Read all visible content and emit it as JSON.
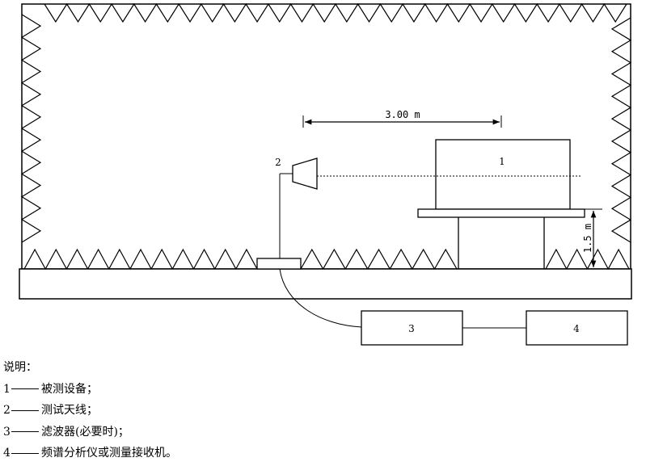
{
  "diagram": {
    "distance_label": "3.00 m",
    "height_label": "1.5 m",
    "box_labels": {
      "eut": "1",
      "antenna": "2",
      "filter": "3",
      "receiver": "4"
    }
  },
  "legend": {
    "title": "说明：",
    "items": [
      {
        "num": "1",
        "text": "被测设备；"
      },
      {
        "num": "2",
        "text": "测试天线；"
      },
      {
        "num": "3",
        "text": "滤波器(必要时)；"
      },
      {
        "num": "4",
        "text": "频谱分析仪或测量接收机。"
      }
    ]
  }
}
